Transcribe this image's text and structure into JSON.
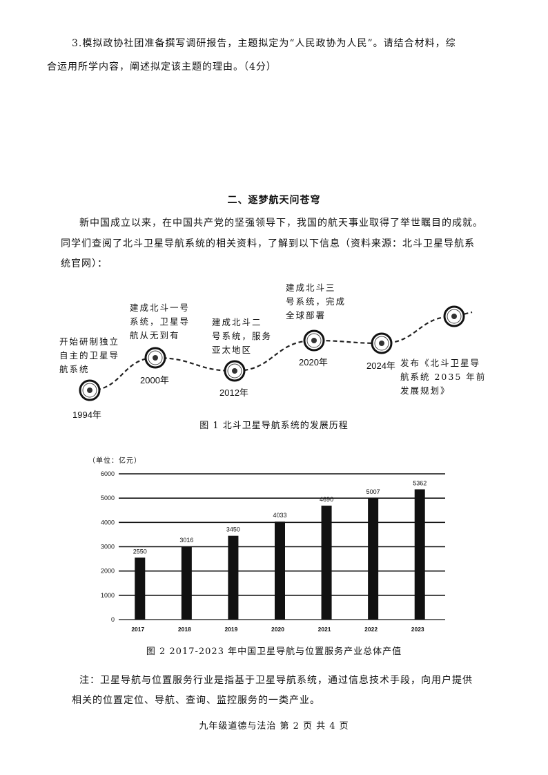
{
  "question": {
    "line1": "3.模拟政协社团准备撰写调研报告，主题拟定为“人民政协为人民”。请结合材料，综",
    "line2": "合运用所学内容，阐述拟定该主题的理由。（4分）"
  },
  "section": {
    "title": "二、逐梦航天问苍穹",
    "para1": "新中国成立以来，在中国共产党的坚强领导下，我国的航天事业取得了举世瞩目的成就。",
    "para2": "同学们查阅了北斗卫星导航系统的相关资料，了解到以下信息（资料来源：北斗卫星导航系",
    "para3": "统官网）："
  },
  "timeline": {
    "caption": "图 1  北斗卫星导航系统的发展历程",
    "events": [
      {
        "year": "1994年",
        "text": "开始研制独立\n自主的卫星导\n航系统"
      },
      {
        "year": "2000年",
        "text": "建成北斗一号\n系统，卫星导\n航从无到有"
      },
      {
        "year": "2012年",
        "text": "建成北斗二\n号系统，服务\n亚太地区"
      },
      {
        "year": "2020年",
        "text": "建成北斗三\n号系统，完成\n全球部署"
      },
      {
        "year": "2024年",
        "text": "发布《北斗卫星导\n航系统 2035 年前\n发展规划》"
      }
    ]
  },
  "chart_data": {
    "type": "bar",
    "title": "图 2 2017-2023 年中国卫星导航与位置服务产业总体产值",
    "unit_label": "（单位：亿元）",
    "categories": [
      "2017",
      "2018",
      "2019",
      "2020",
      "2021",
      "2022",
      "2023"
    ],
    "values": [
      2550,
      3016,
      3450,
      4033,
      4690,
      5007,
      5362
    ],
    "data_labels": [
      "2550",
      "3016",
      "3450",
      "4033",
      "4690",
      "5007",
      "5362"
    ],
    "yticks": [
      "0",
      "1000",
      "2000",
      "3000",
      "4000",
      "5000",
      "6000"
    ],
    "ylim": [
      0,
      6000
    ],
    "grid": true,
    "bar_color": "#111111"
  },
  "note": {
    "line1": "注：卫星导航与位置服务行业是指基于卫星导航系统，通过信息技术手段，向用户提供",
    "line2": "相关的位置定位、导航、查询、监控服务的一类产业。"
  },
  "footer": "九年级道德与法治 第 2 页 共 4 页"
}
